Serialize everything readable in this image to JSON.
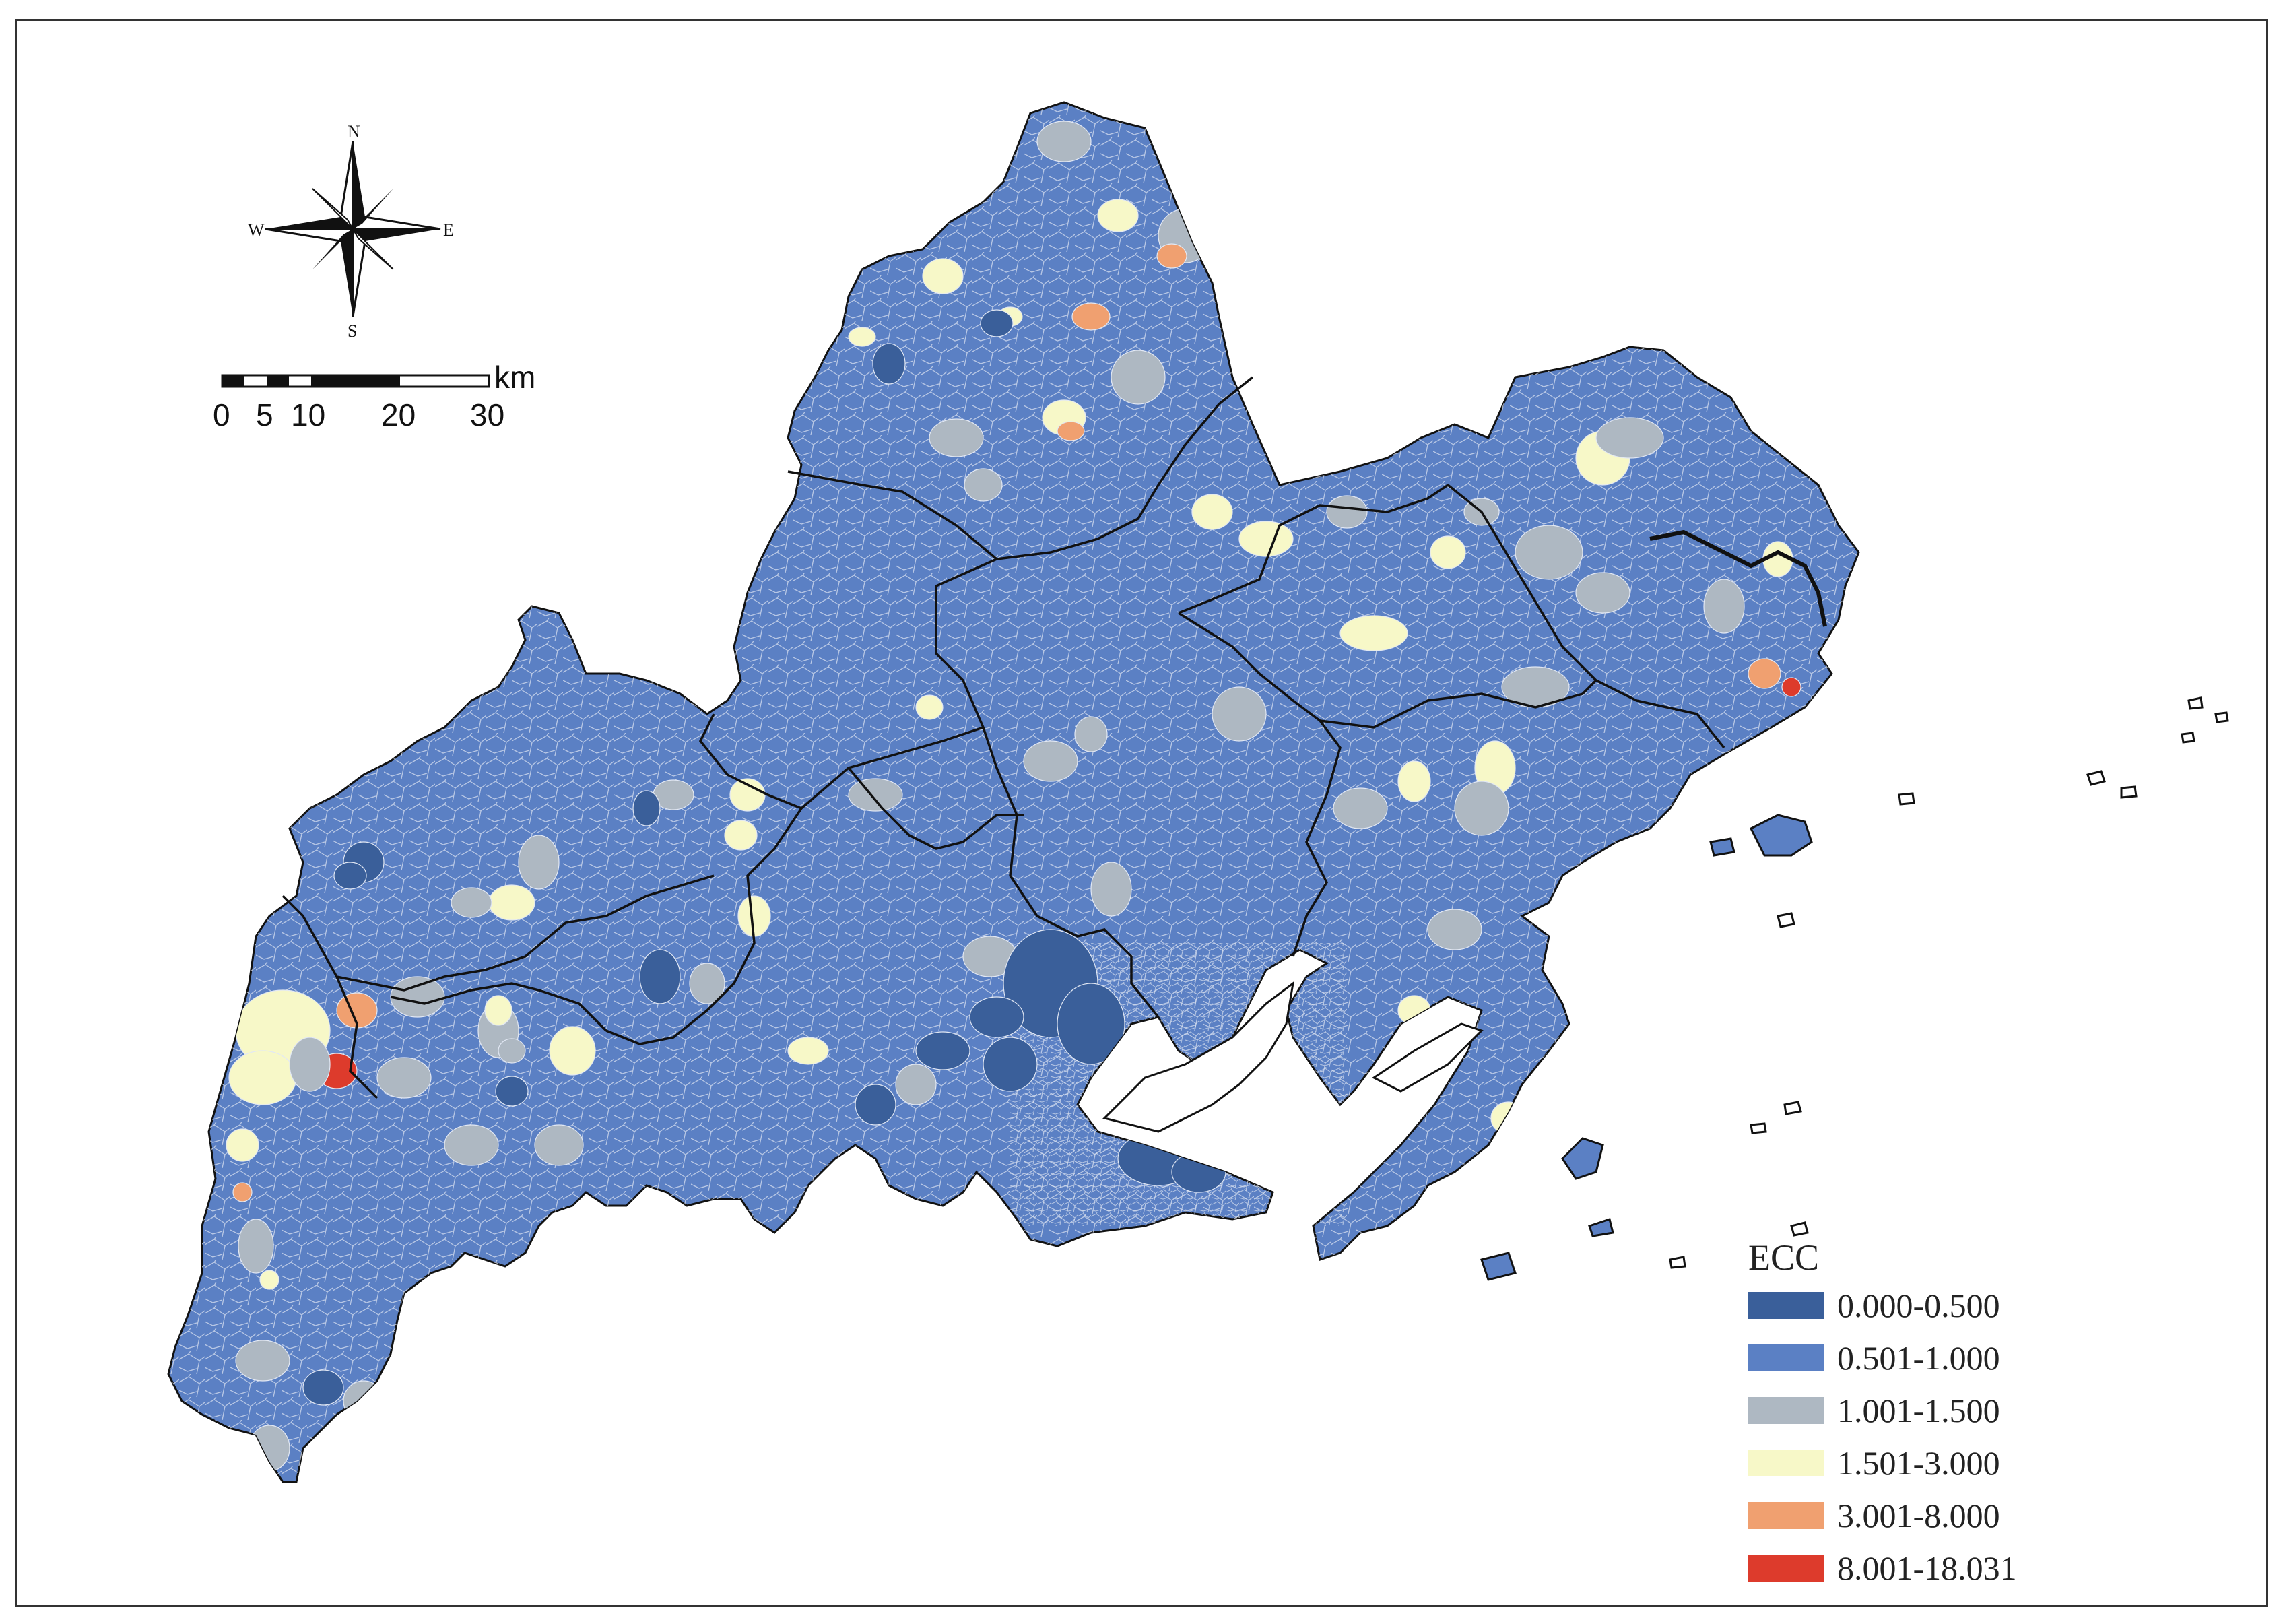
{
  "legend": {
    "title": "ECC",
    "classes": [
      {
        "label": "0.000-0.500",
        "color": "#3a5f9a"
      },
      {
        "label": "0.501-1.000",
        "color": "#5b80c4"
      },
      {
        "label": "1.001-1.500",
        "color": "#aeb8c2"
      },
      {
        "label": "1.501-3.000",
        "color": "#f7f8c8"
      },
      {
        "label": "3.001-8.000",
        "color": "#f0a070"
      },
      {
        "label": "8.001-18.031",
        "color": "#dd3b2c"
      }
    ]
  },
  "north_arrow": {
    "n": "N",
    "s": "S",
    "e": "E",
    "w": "W"
  },
  "scale_bar": {
    "unit": "km",
    "ticks": [
      "0",
      "5",
      "10",
      "20",
      "30"
    ]
  }
}
